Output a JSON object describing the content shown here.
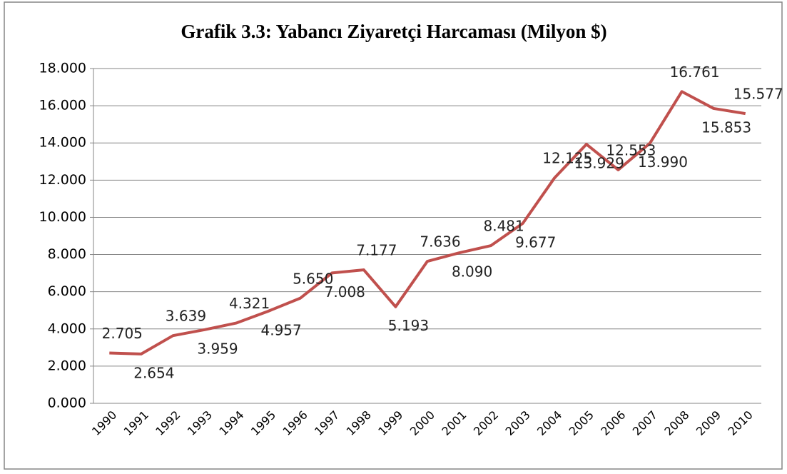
{
  "chart_data": {
    "type": "line",
    "title": "Grafik 3.3: Yabancı Ziyaretçi Harcaması (Milyon $)",
    "categories": [
      "1990",
      "1991",
      "1992",
      "1993",
      "1994",
      "1995",
      "1996",
      "1997",
      "1998",
      "1999",
      "2000",
      "2001",
      "2002",
      "2003",
      "2004",
      "2005",
      "2006",
      "2007",
      "2008",
      "2009",
      "2010"
    ],
    "series": [
      {
        "name": "Yabancı Ziyaretçi Harcaması",
        "color": "#c0504d",
        "values": [
          2705,
          2654,
          3639,
          3959,
          4321,
          4957,
          5650,
          7008,
          7177,
          5193,
          7636,
          8090,
          8481,
          9677,
          12125,
          13929,
          12553,
          13990,
          16761,
          15853,
          15577
        ],
        "value_labels": [
          "2.705",
          "2.654",
          "3.639",
          "3.959",
          "4.321",
          "4.957",
          "5.650",
          "7.008",
          "7.177",
          "5.193",
          "7.636",
          "8.090",
          "8.481",
          "9.677",
          "12.125",
          "13.929",
          "12.553",
          "13.990",
          "16.761",
          "15.853",
          "15.577"
        ]
      }
    ],
    "ylim": [
      0,
      18000
    ],
    "yticks": [
      {
        "value": 0,
        "label": "0.000"
      },
      {
        "value": 2000,
        "label": "2.000"
      },
      {
        "value": 4000,
        "label": "4.000"
      },
      {
        "value": 6000,
        "label": "6.000"
      },
      {
        "value": 8000,
        "label": "8.000"
      },
      {
        "value": 10000,
        "label": "10.000"
      },
      {
        "value": 12000,
        "label": "12.000"
      },
      {
        "value": 14000,
        "label": "14.000"
      },
      {
        "value": 16000,
        "label": "16.000"
      },
      {
        "value": 18000,
        "label": "18.000"
      }
    ],
    "grid": true
  }
}
